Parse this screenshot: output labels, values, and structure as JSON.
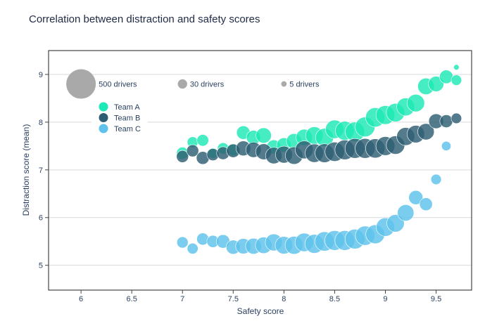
{
  "chart_data": {
    "type": "scatter",
    "title": "Correlation between distraction and safety scores",
    "xlabel": "Safety score",
    "ylabel": "Distraction score (mean)",
    "xlim": [
      5.68,
      9.85
    ],
    "ylim": [
      4.48,
      9.5
    ],
    "x_ticks": [
      {
        "value": 6,
        "label": "6"
      },
      {
        "value": 6.5,
        "label": "6.5"
      },
      {
        "value": 7,
        "label": "7"
      },
      {
        "value": 7.5,
        "label": "7.5"
      },
      {
        "value": 8,
        "label": "8"
      },
      {
        "value": 8.5,
        "label": "8.5"
      },
      {
        "value": 9,
        "label": "9"
      },
      {
        "value": 9.5,
        "label": "9.5"
      }
    ],
    "y_ticks": [
      {
        "value": 5,
        "label": "5"
      },
      {
        "value": 6,
        "label": "6"
      },
      {
        "value": 7,
        "label": "7"
      },
      {
        "value": 8,
        "label": "8"
      },
      {
        "value": 9,
        "label": "9"
      }
    ],
    "grid": {
      "x": false,
      "y": true
    },
    "legend_position": "top-left",
    "size_legend": [
      {
        "label": "500 drivers",
        "size": 500,
        "x": 6.0
      },
      {
        "label": "30 drivers",
        "size": 30,
        "x": 7.0
      },
      {
        "label": "5 drivers",
        "size": 5,
        "x": 8.0
      }
    ],
    "size_legend_y": 8.8,
    "series": [
      {
        "name": "Team A",
        "color": "#1de9b6",
        "points": [
          [
            7.0,
            7.35,
            60
          ],
          [
            7.1,
            7.58,
            45
          ],
          [
            7.2,
            7.62,
            55
          ],
          [
            7.3,
            7.35,
            40
          ],
          [
            7.4,
            7.45,
            50
          ],
          [
            7.5,
            7.42,
            60
          ],
          [
            7.6,
            7.78,
            80
          ],
          [
            7.7,
            7.68,
            90
          ],
          [
            7.8,
            7.72,
            110
          ],
          [
            7.9,
            7.48,
            90
          ],
          [
            8.0,
            7.52,
            95
          ],
          [
            8.1,
            7.6,
            110
          ],
          [
            8.2,
            7.68,
            130
          ],
          [
            8.3,
            7.72,
            150
          ],
          [
            8.4,
            7.68,
            160
          ],
          [
            8.5,
            7.85,
            170
          ],
          [
            8.6,
            7.82,
            180
          ],
          [
            8.7,
            7.8,
            190
          ],
          [
            8.8,
            7.9,
            200
          ],
          [
            8.9,
            8.1,
            190
          ],
          [
            9.0,
            8.15,
            180
          ],
          [
            9.1,
            8.2,
            170
          ],
          [
            9.2,
            8.32,
            160
          ],
          [
            9.3,
            8.4,
            150
          ],
          [
            9.4,
            8.75,
            130
          ],
          [
            9.5,
            8.8,
            110
          ],
          [
            9.6,
            8.95,
            80
          ],
          [
            9.7,
            8.88,
            40
          ],
          [
            9.7,
            9.15,
            5
          ]
        ]
      },
      {
        "name": "Team B",
        "color": "#2e5e73",
        "points": [
          [
            7.0,
            7.28,
            60
          ],
          [
            7.1,
            7.4,
            60
          ],
          [
            7.2,
            7.25,
            70
          ],
          [
            7.3,
            7.32,
            60
          ],
          [
            7.4,
            7.35,
            70
          ],
          [
            7.5,
            7.4,
            80
          ],
          [
            7.6,
            7.45,
            100
          ],
          [
            7.7,
            7.42,
            110
          ],
          [
            7.8,
            7.38,
            120
          ],
          [
            7.9,
            7.3,
            130
          ],
          [
            8.0,
            7.32,
            140
          ],
          [
            8.1,
            7.3,
            150
          ],
          [
            8.2,
            7.42,
            160
          ],
          [
            8.3,
            7.35,
            170
          ],
          [
            8.4,
            7.35,
            180
          ],
          [
            8.5,
            7.38,
            190
          ],
          [
            8.6,
            7.42,
            200
          ],
          [
            8.7,
            7.45,
            200
          ],
          [
            8.8,
            7.45,
            200
          ],
          [
            8.9,
            7.45,
            190
          ],
          [
            9.0,
            7.5,
            180
          ],
          [
            9.1,
            7.52,
            170
          ],
          [
            9.2,
            7.7,
            160
          ],
          [
            9.3,
            7.75,
            150
          ],
          [
            9.4,
            7.8,
            130
          ],
          [
            9.5,
            8.02,
            100
          ],
          [
            9.6,
            8.02,
            70
          ],
          [
            9.7,
            8.08,
            40
          ]
        ]
      },
      {
        "name": "Team C",
        "color": "#5ec2ec",
        "points": [
          [
            7.0,
            5.48,
            50
          ],
          [
            7.1,
            5.35,
            45
          ],
          [
            7.2,
            5.55,
            60
          ],
          [
            7.3,
            5.5,
            60
          ],
          [
            7.4,
            5.5,
            80
          ],
          [
            7.5,
            5.38,
            90
          ],
          [
            7.6,
            5.4,
            110
          ],
          [
            7.7,
            5.4,
            120
          ],
          [
            7.8,
            5.42,
            130
          ],
          [
            7.9,
            5.48,
            140
          ],
          [
            8.0,
            5.42,
            150
          ],
          [
            8.1,
            5.42,
            160
          ],
          [
            8.2,
            5.48,
            170
          ],
          [
            8.3,
            5.45,
            180
          ],
          [
            8.4,
            5.5,
            190
          ],
          [
            8.5,
            5.52,
            200
          ],
          [
            8.6,
            5.52,
            200
          ],
          [
            8.7,
            5.55,
            200
          ],
          [
            8.8,
            5.62,
            190
          ],
          [
            8.9,
            5.65,
            180
          ],
          [
            9.0,
            5.8,
            170
          ],
          [
            9.1,
            5.88,
            150
          ],
          [
            9.2,
            6.1,
            130
          ],
          [
            9.3,
            6.42,
            90
          ],
          [
            9.4,
            6.28,
            70
          ],
          [
            9.5,
            6.8,
            40
          ],
          [
            9.6,
            7.5,
            30
          ]
        ]
      }
    ]
  }
}
